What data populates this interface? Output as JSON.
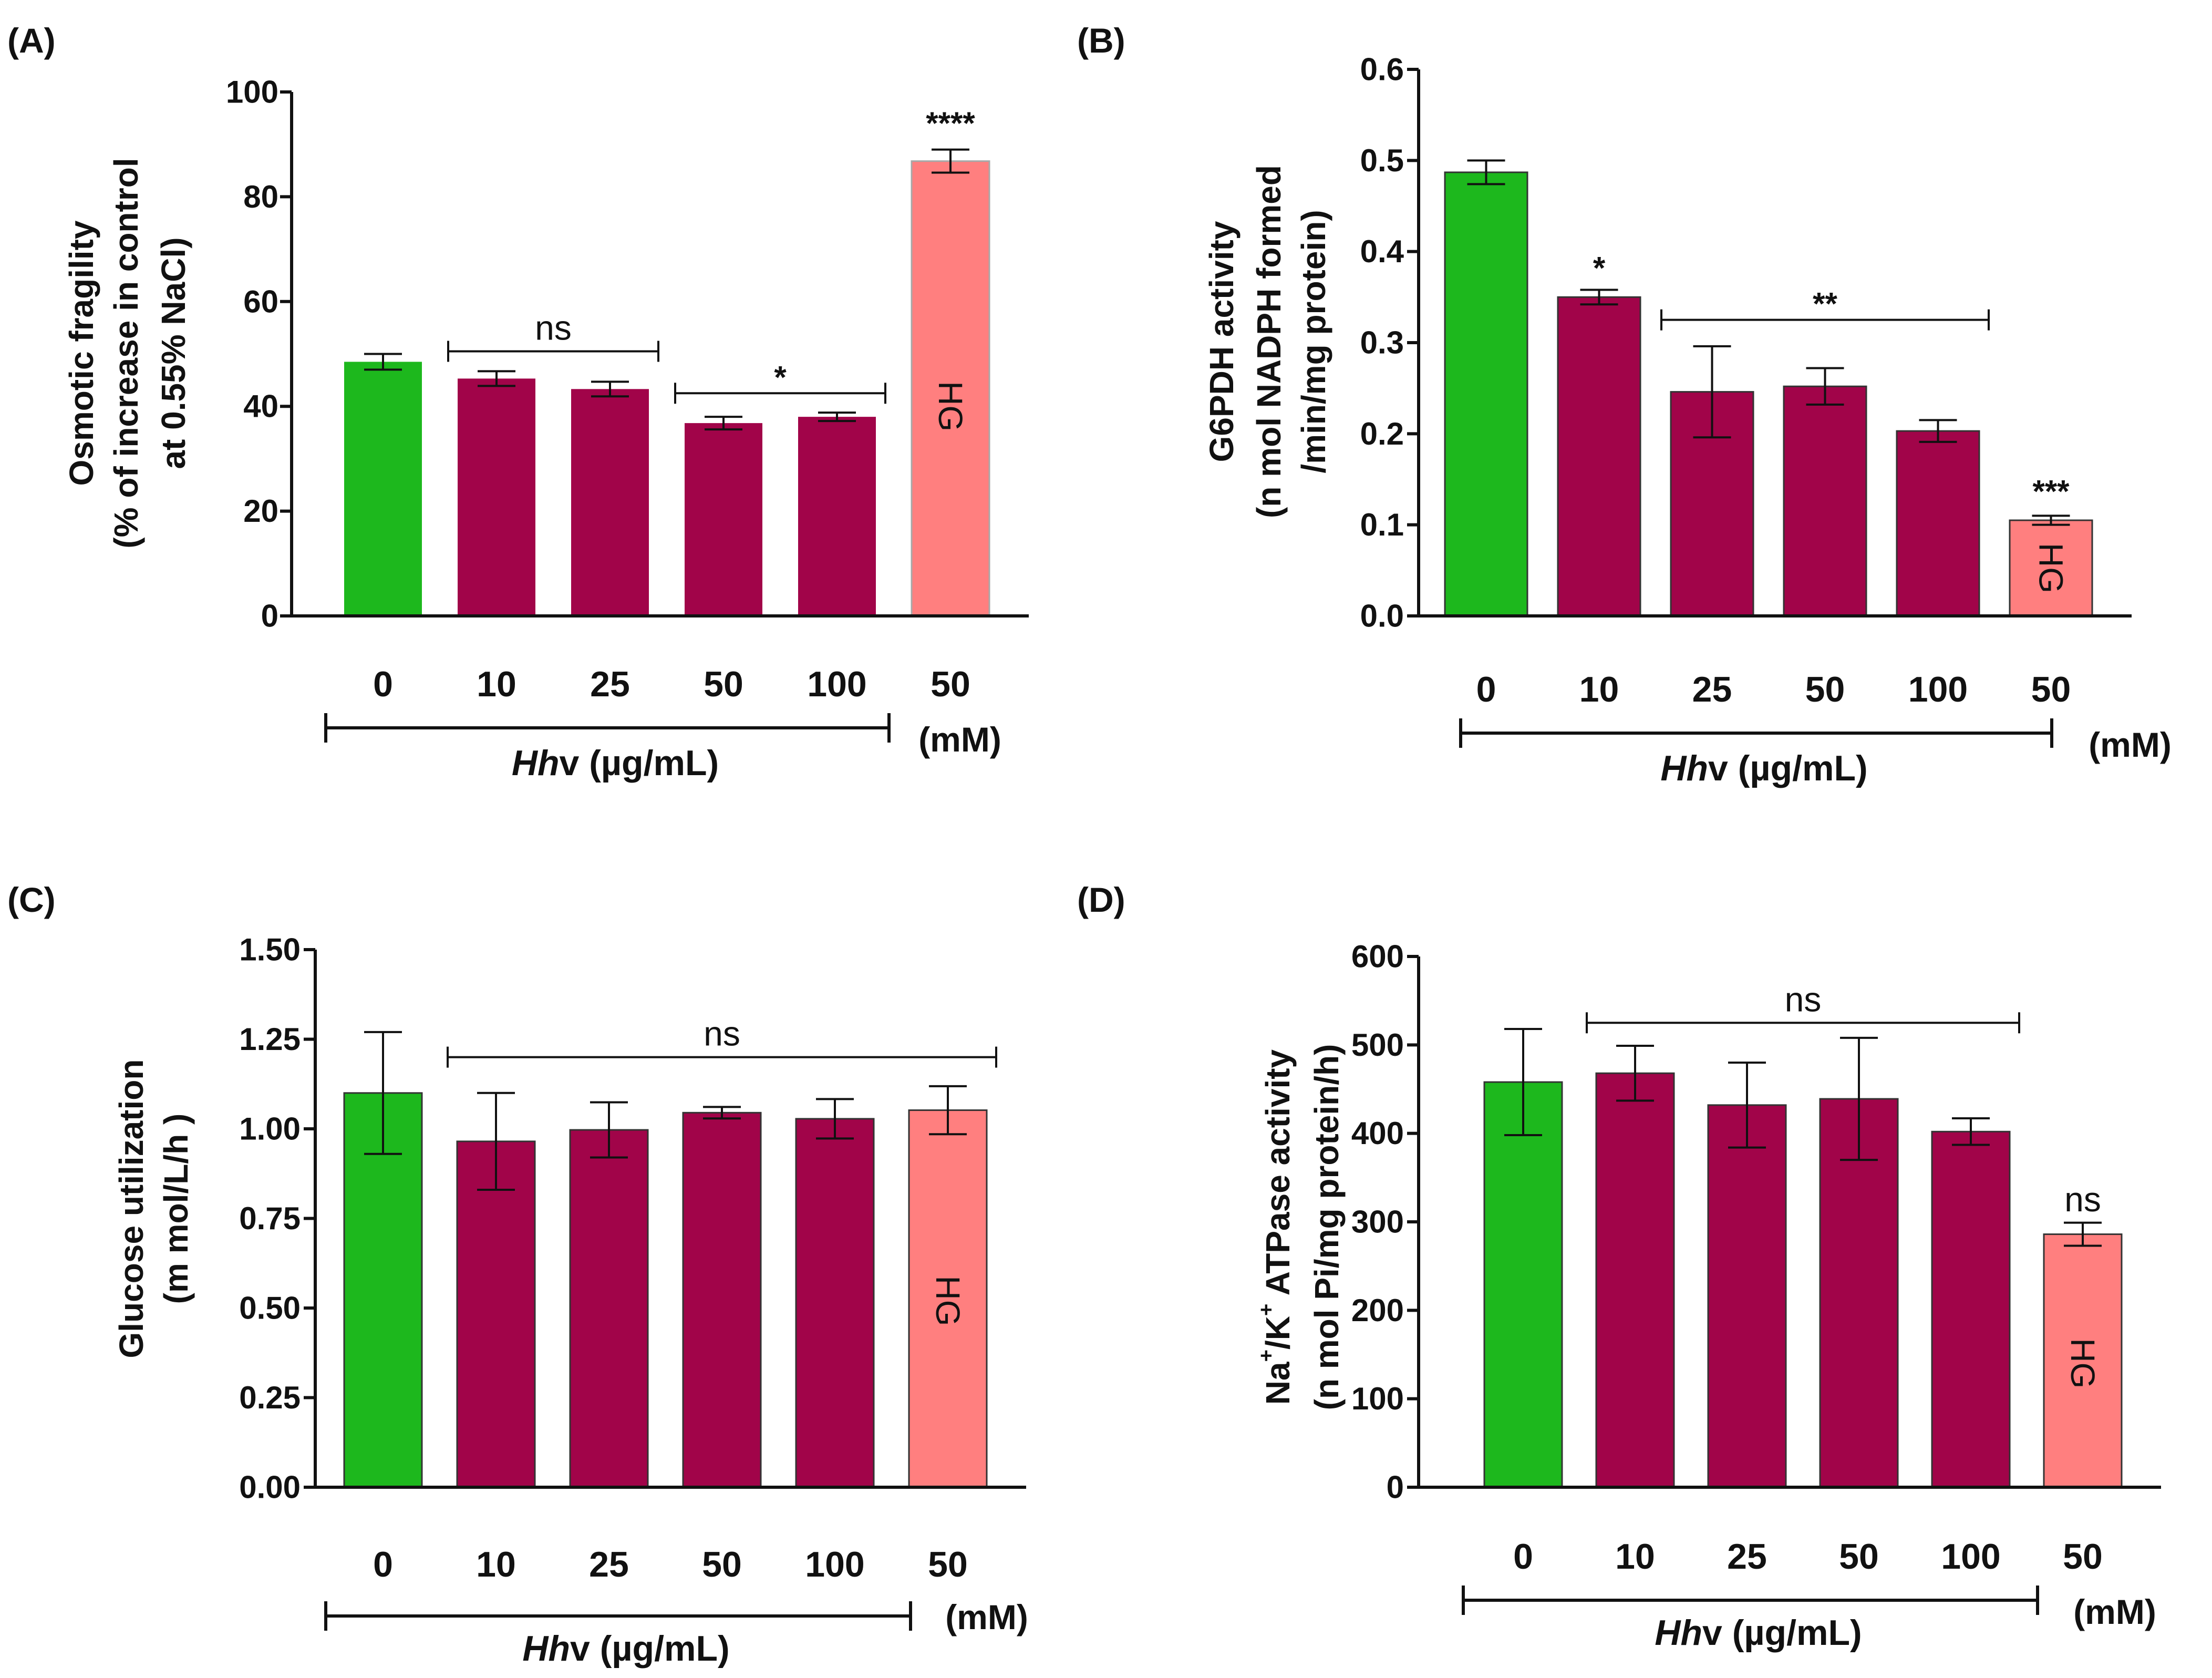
{
  "colors": {
    "control": "#1DB81D",
    "treatment": "#A10449",
    "high_glucose": "#FF7F7F",
    "axis": "#111111"
  },
  "chart_data": [
    {
      "type": "bar",
      "panel_label": "(A)",
      "categories": [
        "0",
        "10",
        "25",
        "50",
        "100",
        "50"
      ],
      "values": [
        48.5,
        45.3,
        43.3,
        36.8,
        38.0,
        86.8
      ],
      "errors": [
        1.5,
        1.4,
        1.4,
        1.2,
        0.8,
        2.2
      ],
      "bar_groups": [
        "control",
        "treatment",
        "treatment",
        "treatment",
        "treatment",
        "high_glucose"
      ],
      "ylabel_lines": [
        "Osmotic fragility",
        "(% of increase in control",
        "at 0.55% NaCl)"
      ],
      "ylim": [
        0,
        100
      ],
      "yticks": [
        0,
        20,
        40,
        60,
        80,
        100
      ],
      "ytick_labels": [
        "0",
        "20",
        "40",
        "60",
        "80",
        "100"
      ],
      "hhv_label": "Hhv (µg/mL)",
      "mm_label": "(mM)",
      "hg_label": "HG",
      "significance": [
        {
          "type": "bracket",
          "from": 1,
          "to": 2,
          "y": 50.5,
          "text": "ns"
        },
        {
          "type": "bracket",
          "from": 3,
          "to": 4,
          "y": 42.5,
          "text": "*"
        },
        {
          "type": "label",
          "bar": 5,
          "y": 92,
          "text": "****"
        }
      ]
    },
    {
      "type": "bar",
      "panel_label": "(B)",
      "categories": [
        "0",
        "10",
        "25",
        "50",
        "100",
        "50"
      ],
      "values": [
        0.487,
        0.35,
        0.246,
        0.252,
        0.203,
        0.105
      ],
      "errors": [
        0.013,
        0.008,
        0.05,
        0.02,
        0.012,
        0.005
      ],
      "bar_groups": [
        "control",
        "treatment",
        "treatment",
        "treatment",
        "treatment",
        "high_glucose"
      ],
      "ylabel_lines": [
        "G6PDH activity",
        "(n mol NADPH formed",
        "/min/mg protein)"
      ],
      "ylim": [
        0,
        0.6
      ],
      "yticks": [
        0,
        0.1,
        0.2,
        0.3,
        0.4,
        0.5,
        0.6
      ],
      "ytick_labels": [
        "0.0",
        "0.1",
        "0.2",
        "0.3",
        "0.4",
        "0.5",
        "0.6"
      ],
      "hhv_label": "Hhv (µg/mL)",
      "mm_label": "(mM)",
      "hg_label": "HG",
      "significance": [
        {
          "type": "label",
          "bar": 1,
          "y": 0.37,
          "text": "*"
        },
        {
          "type": "bracket",
          "from": 2,
          "to": 4,
          "y": 0.325,
          "text": "**"
        },
        {
          "type": "label",
          "bar": 5,
          "y": 0.125,
          "text": "***"
        }
      ]
    },
    {
      "type": "bar",
      "panel_label": "(C)",
      "categories": [
        "0",
        "10",
        "25",
        "50",
        "100",
        "50"
      ],
      "values": [
        1.1,
        0.965,
        0.997,
        1.045,
        1.028,
        1.052
      ],
      "errors": [
        0.17,
        0.135,
        0.077,
        0.016,
        0.055,
        0.067
      ],
      "bar_groups": [
        "control",
        "treatment",
        "treatment",
        "treatment",
        "treatment",
        "high_glucose"
      ],
      "ylabel_lines": [
        "Glucose utilization",
        "(m mol/L/h )"
      ],
      "ylim": [
        0,
        1.5
      ],
      "yticks": [
        0,
        0.25,
        0.5,
        0.75,
        1.0,
        1.25,
        1.5
      ],
      "ytick_labels": [
        "0.00",
        "0.25",
        "0.50",
        "0.75",
        "1.00",
        "1.25",
        "1.50"
      ],
      "hhv_label": "Hhv (µg/mL)",
      "mm_label": "(mM)",
      "hg_label": "HG",
      "significance": [
        {
          "type": "bracket",
          "from": 1,
          "to": 5,
          "y": 1.2,
          "text": "ns"
        }
      ]
    },
    {
      "type": "bar",
      "panel_label": "(D)",
      "categories": [
        "0",
        "10",
        "25",
        "50",
        "100",
        "50"
      ],
      "values": [
        458,
        468,
        432,
        439,
        402,
        286
      ],
      "errors": [
        60,
        31,
        48,
        69,
        15,
        13
      ],
      "bar_groups": [
        "control",
        "treatment",
        "treatment",
        "treatment",
        "treatment",
        "high_glucose"
      ],
      "ylabel_lines": [
        "Na+/K+ ATPase activity",
        "(n mol Pi/mg protein/h)"
      ],
      "ylim": [
        0,
        600
      ],
      "yticks": [
        0,
        100,
        200,
        300,
        400,
        500,
        600
      ],
      "ytick_labels": [
        "0",
        "100",
        "200",
        "300",
        "400",
        "500",
        "600"
      ],
      "hhv_label": "Hhv (µg/mL)",
      "mm_label": "(mM)",
      "hg_label": "HG",
      "significance": [
        {
          "type": "bracket",
          "from": 1,
          "to": 4,
          "y": 525,
          "text": "ns"
        },
        {
          "type": "label",
          "bar": 5,
          "y": 312,
          "text": "ns"
        }
      ]
    }
  ]
}
